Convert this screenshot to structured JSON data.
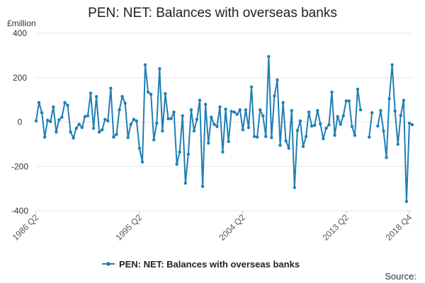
{
  "chart_data": {
    "type": "line",
    "title": "PEN: NET: Balances with overseas banks",
    "ylabel": "£million",
    "ylim": [
      -400,
      400
    ],
    "yticks": [
      400,
      200,
      0,
      -200,
      -400
    ],
    "xticks": [
      "1986 Q2",
      "1995 Q2",
      "2004 Q2",
      "2013 Q2",
      "2018 Q4"
    ],
    "grid": "horizontal",
    "legend_position": "bottom",
    "source_label": "Source:",
    "colors": {
      "series": "#1f7fb4",
      "grid": "#e6e6e6",
      "axis": "#cccccc"
    },
    "series": [
      {
        "name": "PEN: NET: Balances with overseas banks",
        "values": [
          5,
          88,
          42,
          -68,
          8,
          2,
          68,
          -45,
          10,
          22,
          88,
          75,
          -45,
          -72,
          -28,
          -10,
          -25,
          25,
          28,
          130,
          -28,
          115,
          -45,
          -35,
          12,
          5,
          152,
          -68,
          -55,
          55,
          115,
          85,
          -70,
          -10,
          12,
          5,
          -118,
          -180,
          258,
          135,
          125,
          -80,
          -5,
          240,
          -40,
          128,
          15,
          15,
          45,
          -190,
          -135,
          28,
          -275,
          -145,
          55,
          -40,
          12,
          98,
          -290,
          80,
          -95,
          22,
          -10,
          -20,
          68,
          -135,
          58,
          -88,
          48,
          45,
          35,
          55,
          -35,
          55,
          -25,
          158,
          -65,
          -68,
          55,
          28,
          -65,
          295,
          -70,
          118,
          190,
          -105,
          88,
          -85,
          -118,
          52,
          -295,
          -38,
          5,
          -110,
          -65,
          45,
          -18,
          -15,
          52,
          -8,
          -75,
          -28,
          -12,
          135,
          -60,
          25,
          -10,
          28,
          95,
          95,
          -20,
          -60,
          148,
          55,
          null,
          null,
          -68,
          42,
          null,
          -18,
          52,
          -40,
          -160,
          105,
          258,
          50,
          -100,
          30,
          98,
          -358,
          -5,
          -12
        ]
      }
    ]
  }
}
